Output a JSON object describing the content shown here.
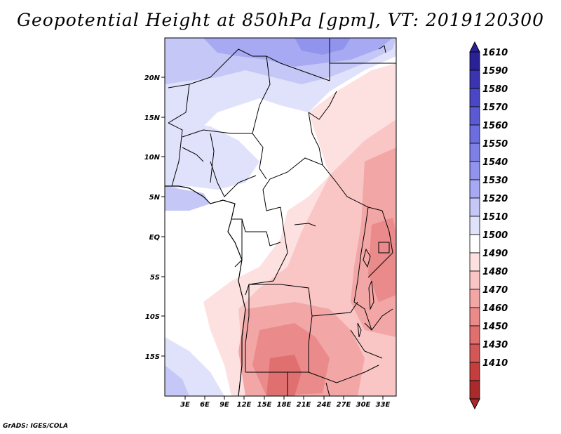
{
  "title": "Geopotential Height at 850hPa [gpm], VT: 2019120300",
  "footer": "GrADS: IGES/COLA",
  "axes": {
    "lat_labels": [
      "20N",
      "15N",
      "10N",
      "5N",
      "EQ",
      "5S",
      "10S",
      "15S"
    ],
    "lon_labels": [
      "3E",
      "6E",
      "9E",
      "12E",
      "15E",
      "18E",
      "21E",
      "24E",
      "27E",
      "30E",
      "33E"
    ]
  },
  "colorbar": {
    "levels": [
      "1610",
      "1590",
      "1580",
      "1570",
      "1560",
      "1550",
      "1540",
      "1530",
      "1520",
      "1510",
      "1500",
      "1490",
      "1480",
      "1470",
      "1460",
      "1450",
      "1430",
      "1410"
    ],
    "colors": [
      "#2a2196",
      "#3a34b0",
      "#4a47c4",
      "#5b5ad2",
      "#6c6dde",
      "#7e80e6",
      "#9194ec",
      "#a7aaf2",
      "#c5c7f7",
      "#e0e1fb",
      "#ffffff",
      "#fde0e0",
      "#f9c5c5",
      "#f2a6a6",
      "#ea8a8a",
      "#e06f6f",
      "#d45757",
      "#c43e3e",
      "#a92a2a"
    ]
  },
  "colors": {
    "low_height": "#f08a8a",
    "high_height": "#9a9af0",
    "neutral": "#ffffff"
  }
}
